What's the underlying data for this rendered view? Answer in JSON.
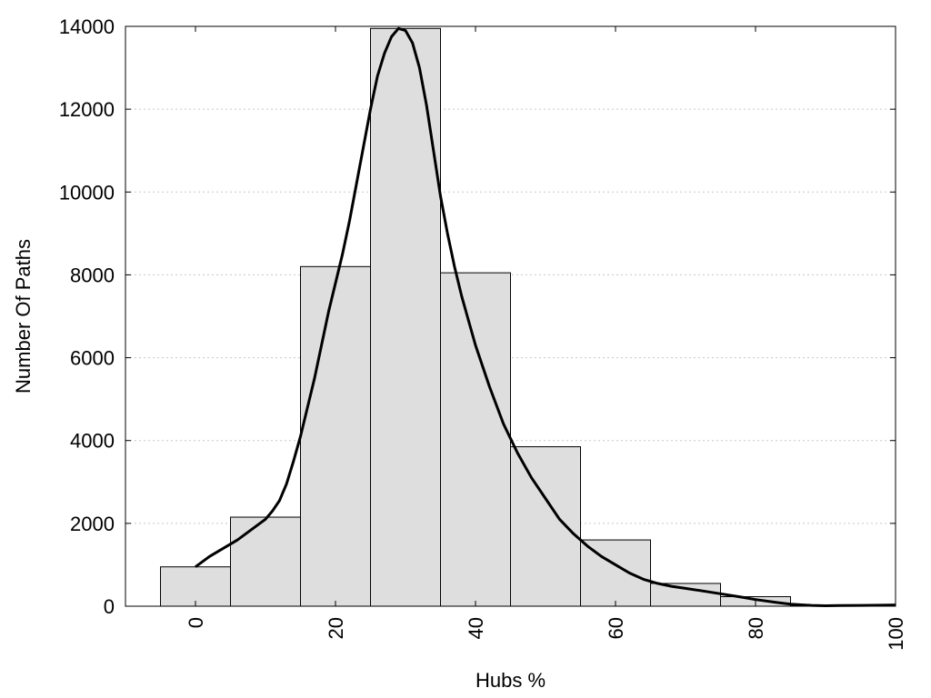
{
  "chart_data": {
    "type": "bar",
    "xlabel": "Hubs %",
    "ylabel": "Number Of Paths",
    "xlim": [
      -10,
      100
    ],
    "ylim": [
      0,
      14000
    ],
    "x_ticks": [
      "0",
      "20",
      "40",
      "60",
      "80",
      "100"
    ],
    "y_ticks": [
      "0",
      "2000",
      "4000",
      "6000",
      "8000",
      "10000",
      "12000",
      "14000"
    ],
    "grid": "horizontal dotted",
    "bin_width": 10,
    "bin_centers": [
      0,
      10,
      20,
      30,
      40,
      50,
      60,
      70,
      80,
      90
    ],
    "values": [
      950,
      2150,
      8200,
      13950,
      8050,
      3850,
      1600,
      550,
      230,
      20
    ],
    "density_curve": {
      "x": [
        0,
        2,
        4,
        6,
        8,
        10,
        11,
        12,
        13,
        14,
        15,
        16,
        17,
        18,
        19,
        20,
        21,
        22,
        23,
        24,
        25,
        26,
        27,
        28,
        29,
        30,
        31,
        32,
        33,
        34,
        35,
        36,
        37,
        38,
        39,
        40,
        42,
        44,
        46,
        48,
        50,
        52,
        54,
        56,
        58,
        60,
        62,
        64,
        66,
        68,
        70,
        72,
        75,
        78,
        80,
        83,
        85,
        88,
        90,
        92,
        95,
        98,
        100
      ],
      "y": [
        950,
        1200,
        1400,
        1600,
        1850,
        2100,
        2300,
        2550,
        2950,
        3500,
        4100,
        4800,
        5500,
        6300,
        7100,
        7800,
        8500,
        9300,
        10200,
        11100,
        12000,
        12800,
        13350,
        13750,
        13950,
        13900,
        13600,
        13000,
        12100,
        11000,
        9900,
        9000,
        8200,
        7500,
        6900,
        6300,
        5300,
        4400,
        3700,
        3100,
        2600,
        2100,
        1750,
        1450,
        1200,
        1000,
        800,
        650,
        550,
        480,
        430,
        380,
        300,
        220,
        160,
        90,
        50,
        20,
        10,
        15,
        20,
        25,
        30
      ]
    }
  }
}
